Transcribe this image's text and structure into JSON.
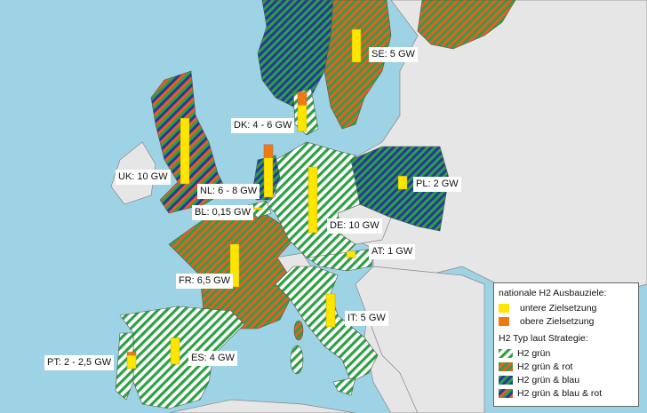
{
  "colors": {
    "sea": "#9dd3e5",
    "land": "#e6e6e6",
    "green": "#2ea043",
    "red": "#ee5a24",
    "blue": "#25399c",
    "lower": "#ffe600",
    "upper": "#ee7a11"
  },
  "legend": {
    "targets_title": "nationale H2 Ausbauziele:",
    "lower": "untere Zielsetzung",
    "upper": "obere Zielsetzung",
    "types_title": "H2 Typ laut Strategie:",
    "types": [
      "H2 grün",
      "H2 grün & rot",
      "H2 grün & blau",
      "H2 grün & blau & rot"
    ]
  },
  "countries": [
    {
      "code": "SE",
      "label": "SE: 5 GW",
      "lower_gw": 5,
      "upper_gw": 5,
      "type": "H2 grün & rot"
    },
    {
      "code": "DK",
      "label": "DK: 4 - 6 GW",
      "lower_gw": 4,
      "upper_gw": 6,
      "type": "H2 grün"
    },
    {
      "code": "UK",
      "label": "UK: 10 GW",
      "lower_gw": 10,
      "upper_gw": 10,
      "type": "H2 grün & blau & rot"
    },
    {
      "code": "NL",
      "label": "NL: 6 - 8 GW",
      "lower_gw": 6,
      "upper_gw": 8,
      "type": "H2 grün & blau"
    },
    {
      "code": "BL",
      "label": "BL: 0,15 GW",
      "lower_gw": 0.15,
      "upper_gw": 0.15,
      "type": "H2 grün"
    },
    {
      "code": "DE",
      "label": "DE: 10 GW",
      "lower_gw": 10,
      "upper_gw": 10,
      "type": "H2 grün"
    },
    {
      "code": "PL",
      "label": "PL: 2 GW",
      "lower_gw": 2,
      "upper_gw": 2,
      "type": "H2 grün & blau"
    },
    {
      "code": "AT",
      "label": "AT: 1 GW",
      "lower_gw": 1,
      "upper_gw": 1,
      "type": "H2 grün"
    },
    {
      "code": "FR",
      "label": "FR: 6,5 GW",
      "lower_gw": 6.5,
      "upper_gw": 6.5,
      "type": "H2 grün & rot"
    },
    {
      "code": "IT",
      "label": "IT: 5 GW",
      "lower_gw": 5,
      "upper_gw": 5,
      "type": "H2 grün"
    },
    {
      "code": "ES",
      "label": "ES: 4 GW",
      "lower_gw": 4,
      "upper_gw": 4,
      "type": "H2 grün"
    },
    {
      "code": "PT",
      "label": "PT: 2 - 2,5 GW",
      "lower_gw": 2,
      "upper_gw": 2.5,
      "type": "H2 grün"
    }
  ],
  "other_regions": [
    {
      "code": "NO",
      "type": "H2 grün & blau"
    },
    {
      "code": "FI",
      "type": "H2 grün & rot"
    }
  ]
}
